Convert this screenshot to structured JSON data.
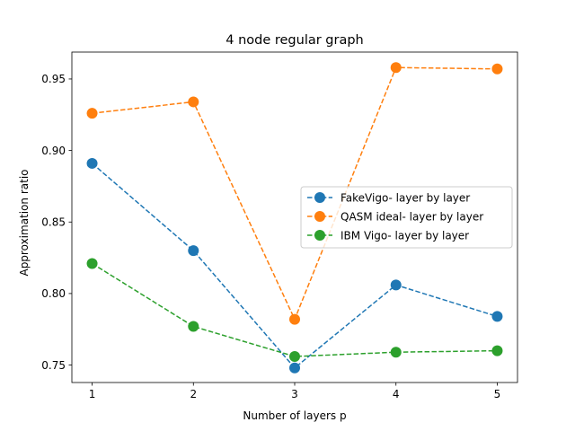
{
  "chart_data": {
    "type": "line",
    "title": "4 node regular graph",
    "xlabel": "Number of layers p",
    "ylabel": "Approximation ratio",
    "x": [
      1,
      2,
      3,
      4,
      5
    ],
    "xticks": [
      "1",
      "2",
      "3",
      "4",
      "5"
    ],
    "xlim": [
      0.8,
      5.2
    ],
    "ylim": [
      0.7378,
      0.9688
    ],
    "yticks": [
      0.75,
      0.8,
      0.85,
      0.9,
      0.95
    ],
    "ytick_labels": [
      "0.75",
      "0.80",
      "0.85",
      "0.90",
      "0.95"
    ],
    "grid": false,
    "legend_position": "center-right",
    "series": [
      {
        "name": "FakeVigo- layer by layer",
        "color": "#1f77b4",
        "values": [
          0.891,
          0.83,
          0.748,
          0.806,
          0.784
        ]
      },
      {
        "name": "QASM ideal- layer by layer",
        "color": "#ff7f0e",
        "values": [
          0.926,
          0.934,
          0.782,
          0.958,
          0.957
        ]
      },
      {
        "name": "IBM Vigo- layer by layer",
        "color": "#2ca02c",
        "values": [
          0.821,
          0.777,
          0.756,
          0.759,
          0.76
        ]
      }
    ]
  }
}
